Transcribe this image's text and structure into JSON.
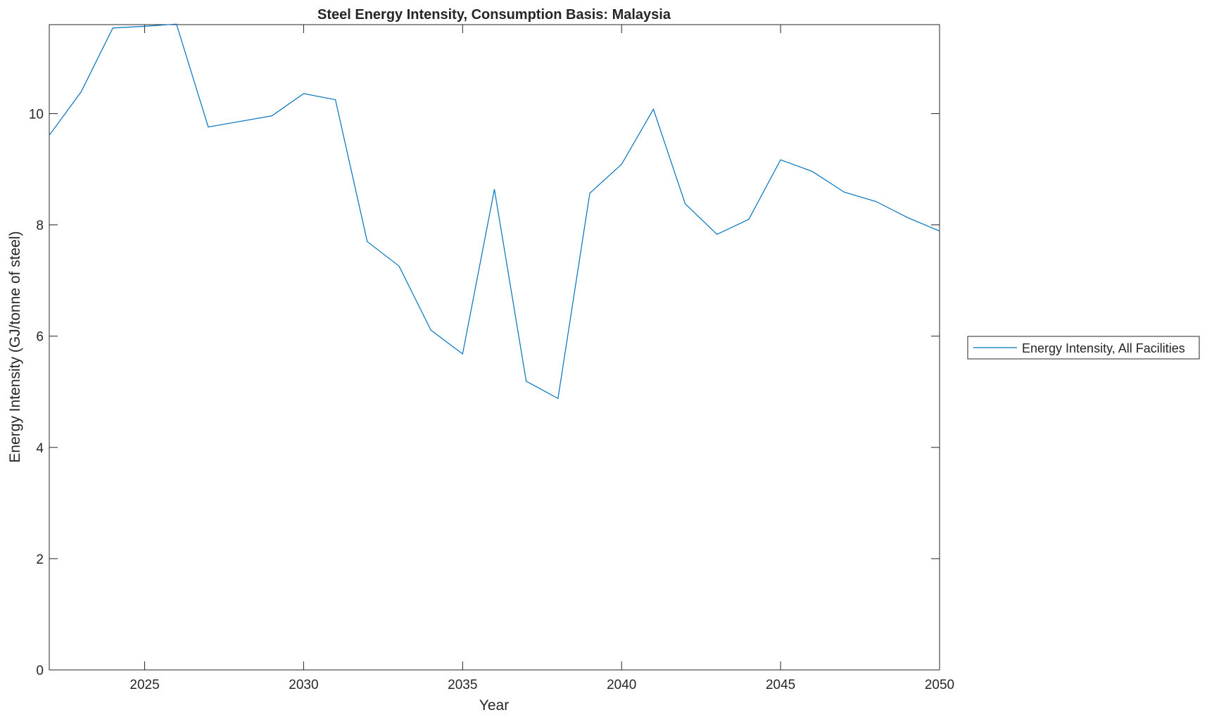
{
  "chart_data": {
    "type": "line",
    "title": "Steel Energy Intensity, Consumption Basis: Malaysia",
    "xlabel": "Year",
    "ylabel": "Energy Intensity (GJ/tonne of steel)",
    "xlim": [
      2022,
      2050
    ],
    "ylim": [
      0,
      11.6
    ],
    "xticks": [
      2025,
      2030,
      2035,
      2040,
      2045,
      2050
    ],
    "yticks": [
      0,
      2,
      4,
      6,
      8,
      10
    ],
    "grid": false,
    "legend_placement": "right-outside",
    "series": [
      {
        "name": "Energy Intensity, All Facilities",
        "color": "#0072BD",
        "x": [
          2022,
          2023,
          2024,
          2025,
          2026,
          2027,
          2028,
          2029,
          2030,
          2031,
          2032,
          2033,
          2034,
          2035,
          2036,
          2037,
          2038,
          2039,
          2040,
          2041,
          2042,
          2043,
          2044,
          2045,
          2046,
          2047,
          2048,
          2049,
          2050
        ],
        "y": [
          9.61,
          10.39,
          11.54,
          11.57,
          11.61,
          9.76,
          9.86,
          9.96,
          10.36,
          10.25,
          7.7,
          7.26,
          6.11,
          5.68,
          8.64,
          5.19,
          4.88,
          8.57,
          9.09,
          10.08,
          8.38,
          7.83,
          8.1,
          9.17,
          8.96,
          8.59,
          8.42,
          8.13,
          7.89
        ]
      }
    ]
  }
}
